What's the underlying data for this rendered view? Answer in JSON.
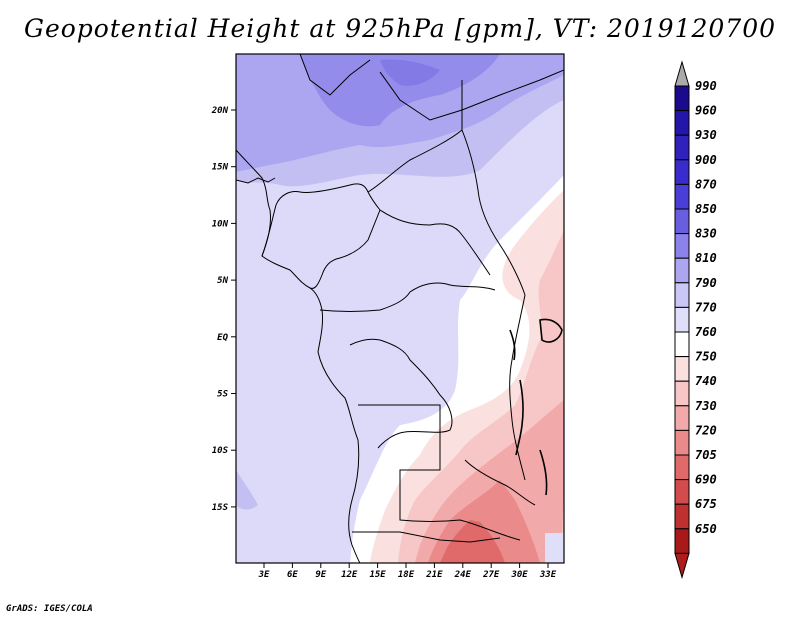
{
  "title": "Geopotential Height at 925hPa [gpm], VT: 2019120700",
  "footer": "GrADS: IGES/COLA",
  "lat_labels": [
    "20N",
    "15N",
    "10N",
    "5N",
    "EQ",
    "5S",
    "10S",
    "15S"
  ],
  "lon_labels": [
    "3E",
    "6E",
    "9E",
    "12E",
    "15E",
    "18E",
    "21E",
    "24E",
    "27E",
    "30E",
    "33E"
  ],
  "colorbar": {
    "levels": [
      {
        "label": "990",
        "color": "#1a0a8c"
      },
      {
        "label": "960",
        "color": "#2416a8"
      },
      {
        "label": "930",
        "color": "#3020bc"
      },
      {
        "label": "900",
        "color": "#3a2ccc"
      },
      {
        "label": "870",
        "color": "#4a3ed8"
      },
      {
        "label": "850",
        "color": "#6a5ee0"
      },
      {
        "label": "830",
        "color": "#8c82ea"
      },
      {
        "label": "810",
        "color": "#aca6f0"
      },
      {
        "label": "790",
        "color": "#cac6f5"
      },
      {
        "label": "770",
        "color": "#e0dff9"
      },
      {
        "label": "760",
        "color": "#ffffff"
      },
      {
        "label": "750",
        "color": "#fbe0e0"
      },
      {
        "label": "740",
        "color": "#f7c6c6"
      },
      {
        "label": "730",
        "color": "#f2a9a9"
      },
      {
        "label": "720",
        "color": "#ea8a8a"
      },
      {
        "label": "705",
        "color": "#e06a6a"
      },
      {
        "label": "690",
        "color": "#d24c4c"
      },
      {
        "label": "675",
        "color": "#bf3030"
      },
      {
        "label": "650",
        "color": "#a81a1a"
      }
    ],
    "over_color": "#aaaaaa",
    "under_color": "#b01c1c"
  }
}
